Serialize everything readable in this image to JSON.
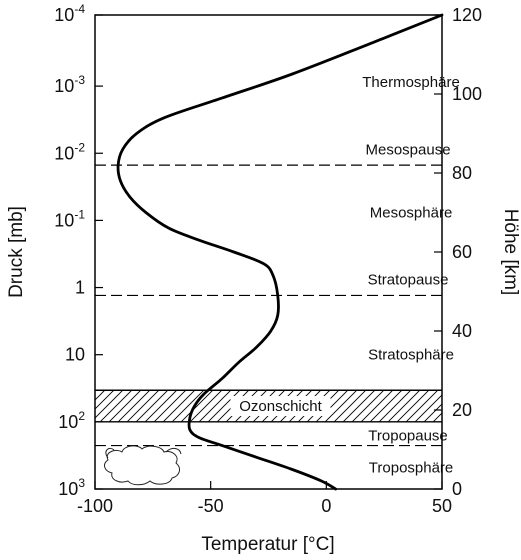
{
  "chart_data": {
    "type": "line",
    "xlabel": "Temperatur [°C]",
    "ylabel_left": "Druck [mb]",
    "ylabel_right": "Höhe [km]",
    "xlim": [
      -100,
      50
    ],
    "xticks": [
      "-100",
      "-50",
      "0",
      "50"
    ],
    "ylim_km": [
      0,
      120
    ],
    "right_ticks": [
      0,
      20,
      40,
      60,
      80,
      100,
      120
    ],
    "left_ticks": [
      {
        "km": 0,
        "base": "10",
        "exp": "3"
      },
      {
        "km": 17,
        "base": "10",
        "exp": "2"
      },
      {
        "km": 34,
        "base": "10",
        "exp": ""
      },
      {
        "km": 51,
        "base": "1",
        "exp": ""
      },
      {
        "km": 68,
        "base": "10",
        "exp": "-1"
      },
      {
        "km": 85,
        "base": "10",
        "exp": "-2"
      },
      {
        "km": 102,
        "base": "10",
        "exp": "-3"
      },
      {
        "km": 120,
        "base": "10",
        "exp": "-4"
      }
    ],
    "series": [
      {
        "x": [
          4,
          -2,
          -15,
          -30,
          -45,
          -55,
          -59,
          -59,
          -57,
          -53,
          -45,
          -38,
          -30,
          -24,
          -21,
          -21,
          -23,
          -27,
          -40,
          -55,
          -68,
          -78,
          -85,
          -89,
          -90,
          -88,
          -82,
          -70,
          -45,
          -15,
          20,
          50
        ],
        "y": [
          0,
          2,
          5,
          8,
          11,
          13,
          15,
          18,
          21,
          24,
          28,
          32,
          36,
          40,
          44,
          49,
          54,
          57,
          60,
          63,
          66,
          70,
          74,
          78,
          82,
          86,
          90,
          94,
          99,
          105,
          113,
          120
        ]
      }
    ],
    "boundaries": [
      {
        "name": "Tropopause",
        "km": 11
      },
      {
        "name": "Stratopause",
        "km": 49
      },
      {
        "name": "Mesospause",
        "km": 82
      }
    ],
    "ozone_layer": {
      "label": "Ozonschicht",
      "km_range": [
        17,
        25
      ]
    },
    "regions": [
      {
        "label": "Troposphäre",
        "km": 5.5,
        "x": 15
      },
      {
        "label": "Stratosphäre",
        "km": 34,
        "x": 15
      },
      {
        "label": "Mesosphäre",
        "km": 70,
        "x": 15
      },
      {
        "label": "Thermosphäre",
        "km": 103,
        "x": 15
      }
    ],
    "annotations": [
      {
        "label": "Tropopause",
        "km": 13.5,
        "x": 15
      },
      {
        "label": "Stratopause",
        "km": 53,
        "x": 15
      },
      {
        "label": "Mesospause",
        "km": 86,
        "x": 15
      }
    ]
  }
}
